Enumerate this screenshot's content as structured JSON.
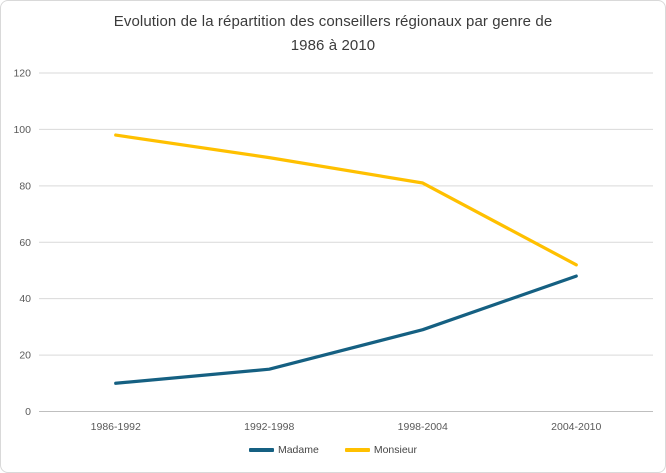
{
  "chart": {
    "title_lines": [
      "Evolution de la répartition des conseillers régionaux par genre de",
      "1986 à 2010"
    ]
  },
  "chart_data": {
    "type": "line",
    "title": "Evolution de la répartition des conseillers régionaux par genre de 1986 à 2010",
    "categories": [
      "1986-1992",
      "1992-1998",
      "1998-2004",
      "2004-2010"
    ],
    "series": [
      {
        "name": "Madame",
        "color": "#156082",
        "values": [
          10,
          15,
          29,
          48
        ]
      },
      {
        "name": "Monsieur",
        "color": "#FFC000",
        "values": [
          98,
          90,
          81,
          52
        ]
      }
    ],
    "xlabel": "",
    "ylabel": "",
    "ylim": [
      0,
      120
    ],
    "ytick_step": 20,
    "yticks": [
      0,
      20,
      40,
      60,
      80,
      100,
      120
    ],
    "grid": true,
    "legend_position": "bottom",
    "colors": {
      "gridline": "#d9d9d9",
      "axis_line": "#bfbfbf",
      "tick_label": "#595959",
      "title": "#3b3b3b"
    }
  }
}
